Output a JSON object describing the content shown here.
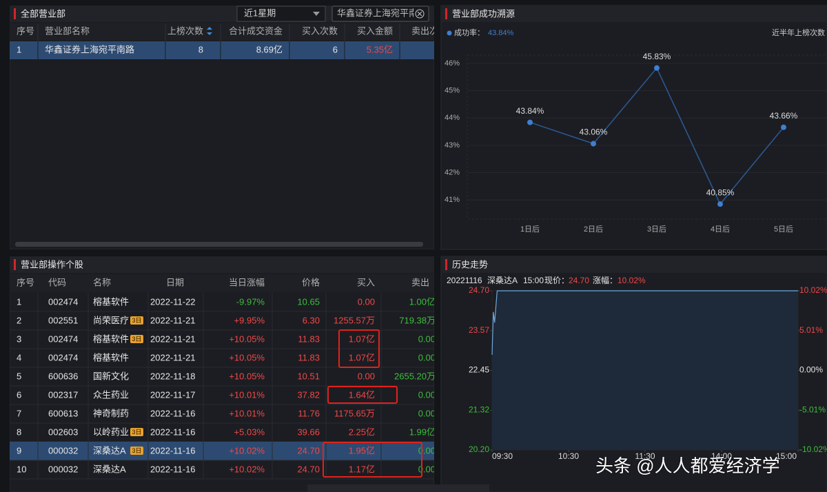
{
  "left_top": {
    "title": "全部营业部",
    "period": "近1星期",
    "search": "华鑫证券上海宛平南",
    "columns": [
      "序号",
      "营业部名称",
      "上榜次数",
      "合计成交资金",
      "买入次数",
      "买入金额",
      "卖出次数"
    ],
    "rows": [
      [
        "1",
        "华鑫证券上海宛平南路",
        "8",
        "8.69亿",
        "6",
        "5.35亿"
      ]
    ]
  },
  "success": {
    "title": "营业部成功溯源",
    "legend_label": "成功率：",
    "legend_value": "43.84%",
    "note": "近半年上榜次数",
    "chart_data": {
      "type": "line",
      "categories": [
        "1日后",
        "2日后",
        "3日后",
        "4日后",
        "5日后"
      ],
      "values": [
        43.84,
        43.06,
        45.83,
        40.85,
        43.66
      ],
      "value_labels": [
        "43.84%",
        "43.06%",
        "45.83%",
        "40.85%",
        "43.66%"
      ],
      "color": "#3d7fd1",
      "line_color": "#2b5a96",
      "ylim": [
        40.3,
        46.3
      ],
      "yticks": [
        {
          "value": 41,
          "label": "41%"
        },
        {
          "value": 42,
          "label": "42%"
        },
        {
          "value": 43,
          "label": "43%"
        },
        {
          "value": 44,
          "label": "44%"
        },
        {
          "value": 45,
          "label": "45%"
        },
        {
          "value": 46,
          "label": "46%"
        }
      ]
    }
  },
  "stocks": {
    "title": "营业部操作个股",
    "columns": [
      "序号",
      "代码",
      "名称",
      "日期",
      "当日涨幅",
      "价格",
      "买入",
      "卖出"
    ],
    "rows": [
      {
        "cells": [
          "1",
          "002474",
          "榕基软件",
          "2022-11-22",
          "-9.97%",
          "10.65",
          "0.00",
          "1.00亿"
        ]
      },
      {
        "cells": [
          "2",
          "002551",
          "尚荣医疗",
          "2022-11-21",
          "+9.95%",
          "6.30",
          "1255.57万",
          "719.38万"
        ],
        "badge": "3日"
      },
      {
        "cells": [
          "3",
          "002474",
          "榕基软件",
          "2022-11-21",
          "+10.05%",
          "11.83",
          "1.07亿",
          "0.00"
        ],
        "badge": "3日"
      },
      {
        "cells": [
          "4",
          "002474",
          "榕基软件",
          "2022-11-21",
          "+10.05%",
          "11.83",
          "1.07亿",
          "0.00"
        ]
      },
      {
        "cells": [
          "5",
          "600636",
          "国新文化",
          "2022-11-18",
          "+10.05%",
          "10.51",
          "0.00",
          "2655.20万"
        ]
      },
      {
        "cells": [
          "6",
          "002317",
          "众生药业",
          "2022-11-17",
          "+10.01%",
          "37.82",
          "1.64亿",
          "0.00"
        ]
      },
      {
        "cells": [
          "7",
          "600613",
          "神奇制药",
          "2022-11-16",
          "+10.01%",
          "11.76",
          "1175.65万",
          "0.00"
        ]
      },
      {
        "cells": [
          "8",
          "002603",
          "以岭药业",
          "2022-11-16",
          "+5.03%",
          "39.66",
          "2.25亿",
          "1.99亿"
        ],
        "badge": "3日"
      },
      {
        "cells": [
          "9",
          "000032",
          "深桑达A",
          "2022-11-16",
          "+10.02%",
          "24.70",
          "1.95亿",
          "0.00"
        ],
        "badge": "3日",
        "selected": true
      },
      {
        "cells": [
          "10",
          "000032",
          "深桑达A",
          "2022-11-16",
          "+10.02%",
          "24.70",
          "1.17亿",
          "0.00"
        ]
      }
    ]
  },
  "history": {
    "title": "历史走势",
    "info": {
      "date": "20221116",
      "name": "深桑达A",
      "time": "15:00",
      "price_label": "现价：",
      "price": "24.70",
      "change_label": "涨幅：",
      "change": "10.02%"
    },
    "chart_data": {
      "type": "line",
      "x": [
        "09:30",
        "09:31",
        "09:32",
        "09:34",
        "15:00"
      ],
      "values": [
        22.89,
        24.1,
        23.8,
        24.7,
        24.7
      ],
      "color": "#6fa8dc",
      "xlim": [
        "09:30",
        "15:00"
      ],
      "xticks": [
        "09:30",
        "10:30",
        "11:30",
        "14:00",
        "15:00"
      ],
      "ylim": [
        20.2,
        24.7
      ],
      "yticks": [
        {
          "value": 24.7,
          "label": "24.70"
        },
        23.57,
        22.45,
        21.32,
        {
          "value": 20.2,
          "label": "20.20"
        }
      ],
      "y2lim": [
        -10.02,
        10.02
      ],
      "y2ticks": [
        {
          "value": 10.02,
          "label": "10.02%"
        },
        {
          "value": 5.01,
          "label": "5.01%"
        },
        {
          "value": 0,
          "label": "0.00%"
        },
        {
          "value": -5.01,
          "label": "-5.01%"
        },
        {
          "value": -10.02,
          "label": "-10.02%"
        }
      ]
    }
  },
  "watermark": "头条 @人人都爱经济学"
}
